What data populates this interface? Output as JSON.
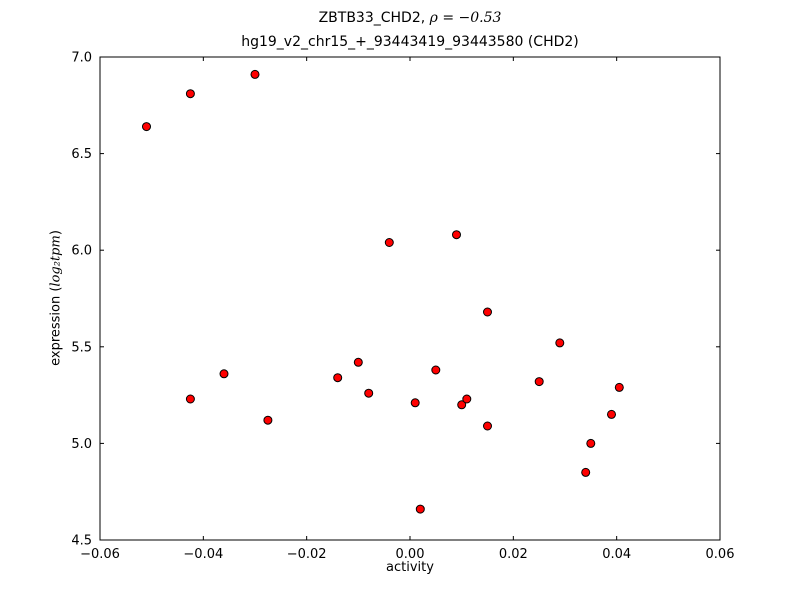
{
  "chart_data": {
    "type": "scatter",
    "title": "ZBTB33_CHD2, ρ = −0.53",
    "title_prefix": "ZBTB33_CHD2, ",
    "title_math": "ρ = −0.53",
    "subtitle": "hg19_v2_chr15_+_93443419_93443580 (CHD2)",
    "xlabel": "activity",
    "ylabel": "expression (log₂tpm)",
    "ylabel_prefix": "expression (",
    "ylabel_math": "log₂tpm",
    "ylabel_suffix": ")",
    "xlim": [
      -0.06,
      0.06
    ],
    "ylim": [
      4.5,
      7.0
    ],
    "xticks": [
      -0.06,
      -0.04,
      -0.02,
      0.0,
      0.02,
      0.04,
      0.06
    ],
    "xtick_labels": [
      "−0.06",
      "−0.04",
      "−0.02",
      "0.00",
      "0.02",
      "0.04",
      "0.06"
    ],
    "yticks": [
      4.5,
      5.0,
      5.5,
      6.0,
      6.5,
      7.0
    ],
    "ytick_labels": [
      "4.5",
      "5.0",
      "5.5",
      "6.0",
      "6.5",
      "7.0"
    ],
    "grid": false,
    "legend": null,
    "marker": {
      "shape": "circle",
      "fill": "#ff0000",
      "edge": "#000000",
      "size": 4
    },
    "points": [
      [
        -0.051,
        6.64
      ],
      [
        -0.0425,
        6.81
      ],
      [
        -0.03,
        6.91
      ],
      [
        -0.0425,
        5.23
      ],
      [
        -0.036,
        5.36
      ],
      [
        -0.0275,
        5.12
      ],
      [
        -0.014,
        5.34
      ],
      [
        -0.01,
        5.42
      ],
      [
        -0.008,
        5.26
      ],
      [
        -0.004,
        6.04
      ],
      [
        0.001,
        5.21
      ],
      [
        0.002,
        4.66
      ],
      [
        0.005,
        5.38
      ],
      [
        0.009,
        6.08
      ],
      [
        0.01,
        5.2
      ],
      [
        0.011,
        5.23
      ],
      [
        0.015,
        5.68
      ],
      [
        0.015,
        5.09
      ],
      [
        0.025,
        5.32
      ],
      [
        0.029,
        5.52
      ],
      [
        0.034,
        4.85
      ],
      [
        0.035,
        5.0
      ],
      [
        0.039,
        5.15
      ],
      [
        0.0405,
        5.29
      ]
    ]
  }
}
